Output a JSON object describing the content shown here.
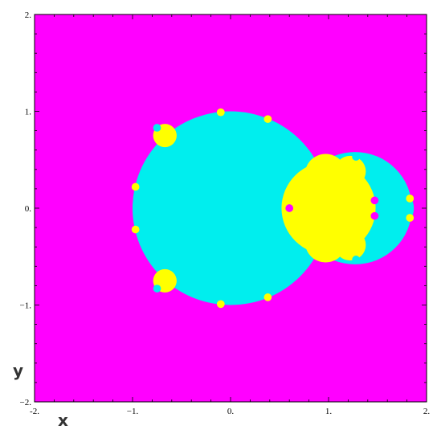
{
  "chart_data": {
    "type": "heatmap",
    "title": "",
    "xlabel": "x",
    "ylabel": "y",
    "xlim": [
      -2,
      2
    ],
    "ylim": [
      -2,
      2
    ],
    "xticks": [
      {
        "value": -2,
        "label": "-2."
      },
      {
        "value": -1,
        "label": "−1."
      },
      {
        "value": 0,
        "label": "0."
      },
      {
        "value": 1,
        "label": "1."
      },
      {
        "value": 2,
        "label": "2."
      }
    ],
    "yticks": [
      {
        "value": 2,
        "label": "2."
      },
      {
        "value": 1,
        "label": "1."
      },
      {
        "value": 0,
        "label": "0."
      },
      {
        "value": -1,
        "label": "−1."
      },
      {
        "value": -2,
        "label": "−2."
      }
    ],
    "grid": false,
    "colors": {
      "background": "#ff00ff",
      "region_main": "#00eeee",
      "region_secondary": "#ffff00",
      "frame": "#000000"
    },
    "regions": [
      {
        "color": "region_main",
        "shape": "disk",
        "center": [
          0,
          0
        ],
        "radius": 1.0
      },
      {
        "color": "region_main",
        "shape": "disk",
        "center": [
          1.27,
          0
        ],
        "radius": 0.58
      },
      {
        "color": "region_main",
        "shape": "disk",
        "center": [
          1.65,
          0
        ],
        "radius": 0.22
      },
      {
        "color": "region_secondary",
        "shape": "disk",
        "center": [
          1.0,
          0
        ],
        "radius": 0.48
      },
      {
        "color": "region_secondary",
        "shape": "disk",
        "center": [
          0.97,
          0.35
        ],
        "radius": 0.21
      },
      {
        "color": "region_secondary",
        "shape": "disk",
        "center": [
          0.97,
          -0.35
        ],
        "radius": 0.21
      },
      {
        "color": "region_secondary",
        "shape": "disk",
        "center": [
          1.22,
          0.38
        ],
        "radius": 0.16
      },
      {
        "color": "region_secondary",
        "shape": "disk",
        "center": [
          1.22,
          -0.38
        ],
        "radius": 0.16
      },
      {
        "color": "region_secondary",
        "shape": "disk",
        "center": [
          -0.67,
          0.75
        ],
        "radius": 0.12
      },
      {
        "color": "region_secondary",
        "shape": "disk",
        "center": [
          -0.67,
          -0.75
        ],
        "radius": 0.12
      }
    ]
  }
}
